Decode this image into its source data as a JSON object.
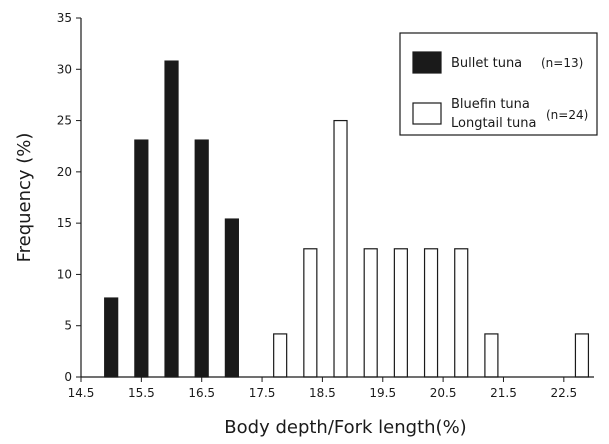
{
  "chart_data": {
    "type": "bar",
    "title": "",
    "xlabel": "Body depth/Fork length(%)",
    "ylabel": "Frequency (%)",
    "ylim": [
      0,
      35
    ],
    "yticks": [
      "0",
      "5",
      "10",
      "15",
      "20",
      "25",
      "30",
      "35"
    ],
    "xlim": [
      14.5,
      23.0
    ],
    "xticks": [
      "14.5",
      "15.5",
      "16.5",
      "17.5",
      "18.5",
      "19.5",
      "20.5",
      "21.5",
      "22.5"
    ],
    "grid": false,
    "legend_position": "top-right",
    "series": [
      {
        "name": "Bullet tuna",
        "n_label": "(n=13)",
        "fill": "#1a1a1a",
        "x": [
          15.0,
          15.5,
          16.0,
          16.5,
          17.0
        ],
        "values": [
          7.7,
          23.1,
          30.8,
          23.1,
          15.4
        ]
      },
      {
        "name": "Bluefin tuna / Longtail tuna",
        "legend_lines": [
          "Bluefin tuna",
          "Longtail tuna"
        ],
        "n_label": "(n=24)",
        "fill": "#ffffff",
        "x": [
          17.8,
          18.3,
          18.8,
          19.3,
          19.8,
          20.3,
          20.8,
          21.3,
          22.8
        ],
        "values": [
          4.2,
          12.5,
          25.0,
          12.5,
          12.5,
          12.5,
          12.5,
          4.2,
          4.2
        ]
      }
    ]
  },
  "colors": {
    "bullet": "#1a1a1a",
    "bluefin": "#ffffff",
    "stroke": "#1a1a1a"
  }
}
